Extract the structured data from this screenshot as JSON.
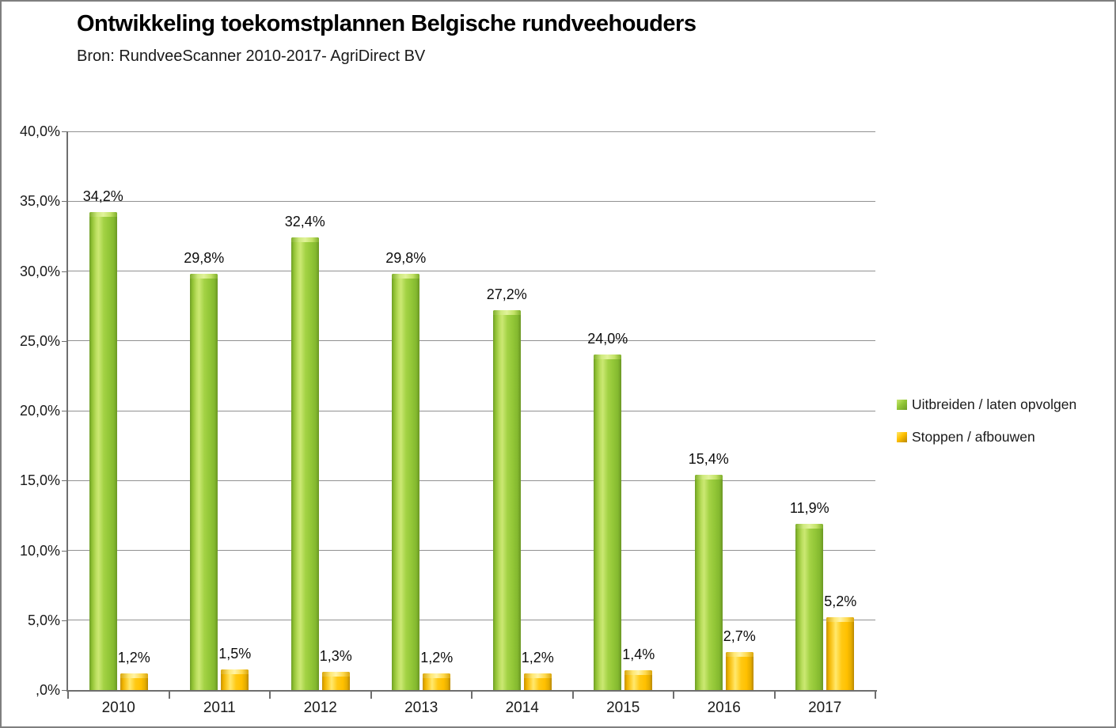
{
  "window": {
    "background": "#FFFFFF",
    "border_color": "#7F7F7F"
  },
  "header": {
    "title": "Ontwikkeling toekomstplannen Belgische rundveehouders",
    "subtitle": "Bron: RundveeScanner 2010-2017- AgriDirect BV"
  },
  "chart_data": {
    "type": "bar",
    "title": "Ontwikkeling toekomstplannen Belgische rundveehouders",
    "subtitle": "Bron: RundveeScanner 2010-2017- AgriDirect BV",
    "categories": [
      "2010",
      "2011",
      "2012",
      "2013",
      "2014",
      "2015",
      "2016",
      "2017"
    ],
    "series": [
      {
        "name": "Uitbreiden / laten opvolgen",
        "color": "#8CC63C",
        "values": [
          34.2,
          29.8,
          32.4,
          29.8,
          27.2,
          24.0,
          15.4,
          11.9
        ],
        "labels": [
          "34,2%",
          "29,8%",
          "32,4%",
          "29,8%",
          "27,2%",
          "24,0%",
          "15,4%",
          "11,9%"
        ]
      },
      {
        "name": "Stoppen / afbouwen",
        "color": "#FFC000",
        "values": [
          1.2,
          1.5,
          1.3,
          1.2,
          1.2,
          1.4,
          2.7,
          5.2
        ],
        "labels": [
          "1,2%",
          "1,5%",
          "1,3%",
          "1,2%",
          "1,2%",
          "1,4%",
          "2,7%",
          "5,2%"
        ]
      }
    ],
    "xlabel": "",
    "ylabel": "",
    "ylim": [
      0,
      40
    ],
    "y_ticks": [
      {
        "value": 40,
        "label": "40,0%"
      },
      {
        "value": 35,
        "label": "35,0%"
      },
      {
        "value": 30,
        "label": "30,0%"
      },
      {
        "value": 25,
        "label": "25,0%"
      },
      {
        "value": 20,
        "label": "20,0%"
      },
      {
        "value": 15,
        "label": "15,0%"
      },
      {
        "value": 10,
        "label": "10,0%"
      },
      {
        "value": 5,
        "label": "5,0%"
      },
      {
        "value": 0,
        "label": ",0%"
      }
    ],
    "grid": true,
    "legend_position": "right"
  },
  "legend": {
    "items": [
      {
        "label": "Uitbreiden / laten opvolgen",
        "color": "#8CC63C"
      },
      {
        "label": "Stoppen / afbouwen",
        "color": "#FFC000"
      }
    ]
  }
}
